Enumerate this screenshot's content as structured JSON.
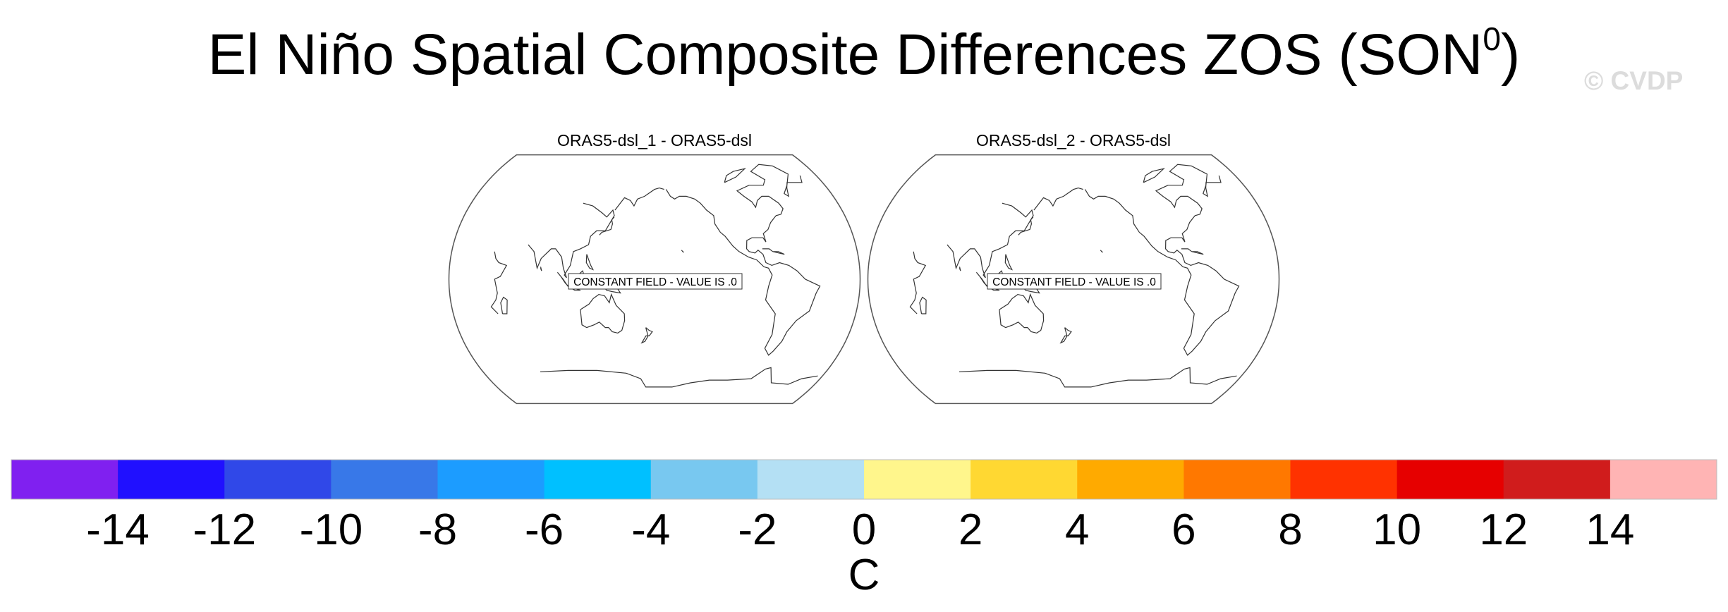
{
  "title": {
    "main": "El Niño Spatial Composite Differences ZOS (SON",
    "superscript": "0",
    "close": ")"
  },
  "watermark": "© CVDP",
  "panels": [
    {
      "title": "ORAS5-dsl_1 - ORAS5-dsl",
      "message": "CONSTANT FIELD - VALUE IS .0"
    },
    {
      "title": "ORAS5-dsl_2 - ORAS5-dsl",
      "message": "CONSTANT FIELD - VALUE IS .0"
    }
  ],
  "projection": "robinson",
  "colorbar": {
    "units": "C",
    "tick_labels": [
      "-14",
      "-12",
      "-10",
      "-8",
      "-6",
      "-4",
      "-2",
      "0",
      "2",
      "4",
      "6",
      "8",
      "10",
      "12",
      "14"
    ],
    "colors": [
      "#8020f0",
      "#2010ff",
      "#3048e8",
      "#3878e8",
      "#1c9cff",
      "#00c0ff",
      "#78c8f0",
      "#b4e0f4",
      "#fff68c",
      "#ffd832",
      "#ffaa00",
      "#ff7800",
      "#ff3200",
      "#e60000",
      "#d01c1c",
      "#ffb4b4"
    ]
  }
}
